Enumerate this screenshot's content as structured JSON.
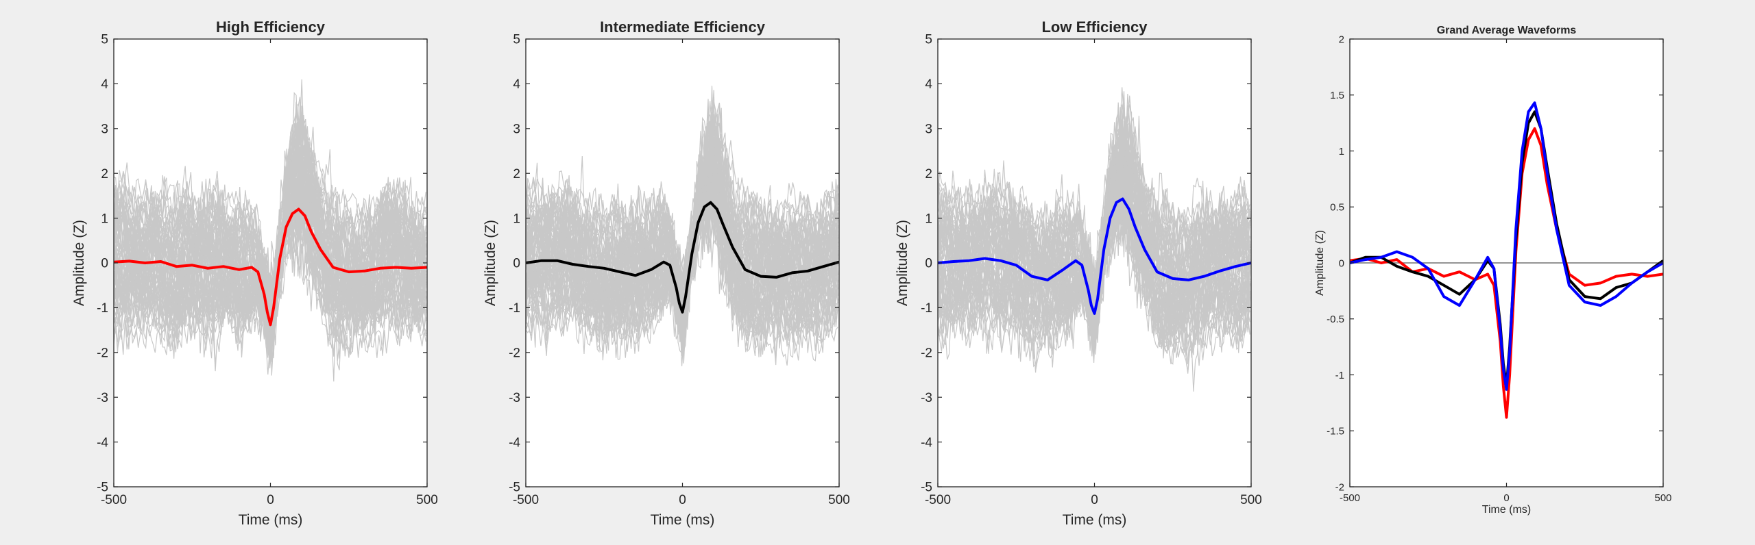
{
  "colors": {
    "background": "#efefef",
    "axes_bg": "#ffffff",
    "trials": "#c8c8c8",
    "high": "#ff0000",
    "intermediate": "#000000",
    "low": "#0000ff",
    "zero_line": "#707070"
  },
  "chart_data": [
    {
      "type": "line",
      "title": "High Efficiency",
      "xlabel": "Time (ms)",
      "ylabel": "Amplitude (Z)",
      "xlim": [
        -500,
        500
      ],
      "ylim": [
        -5,
        5
      ],
      "xticks": [
        -500,
        0,
        500
      ],
      "yticks": [
        -5,
        -4,
        -3,
        -2,
        -1,
        0,
        1,
        2,
        3,
        4,
        5
      ],
      "grid": false,
      "background_traces": "individual trials (gray)",
      "series": [
        {
          "color": "#ff0000",
          "x": [
            -500,
            -450,
            -400,
            -350,
            -300,
            -250,
            -200,
            -150,
            -100,
            -60,
            -40,
            -20,
            -10,
            0,
            10,
            30,
            50,
            70,
            90,
            110,
            130,
            160,
            200,
            250,
            300,
            350,
            400,
            450,
            500
          ],
          "y": [
            0.02,
            0.04,
            0.0,
            0.03,
            -0.08,
            -0.05,
            -0.12,
            -0.08,
            -0.15,
            -0.1,
            -0.2,
            -0.7,
            -1.1,
            -1.38,
            -1.0,
            0.1,
            0.8,
            1.1,
            1.2,
            1.05,
            0.7,
            0.3,
            -0.1,
            -0.2,
            -0.18,
            -0.12,
            -0.1,
            -0.12,
            -0.1
          ]
        }
      ]
    },
    {
      "type": "line",
      "title": "Intermediate Efficiency",
      "xlabel": "Time (ms)",
      "ylabel": "Amplitude (Z)",
      "xlim": [
        -500,
        500
      ],
      "ylim": [
        -5,
        5
      ],
      "xticks": [
        -500,
        0,
        500
      ],
      "yticks": [
        -5,
        -4,
        -3,
        -2,
        -1,
        0,
        1,
        2,
        3,
        4,
        5
      ],
      "grid": false,
      "background_traces": "individual trials (gray)",
      "series": [
        {
          "color": "#000000",
          "x": [
            -500,
            -450,
            -400,
            -350,
            -300,
            -250,
            -200,
            -150,
            -100,
            -60,
            -40,
            -20,
            -10,
            0,
            10,
            30,
            50,
            70,
            90,
            110,
            130,
            160,
            200,
            250,
            300,
            350,
            400,
            450,
            500
          ],
          "y": [
            0.0,
            0.05,
            0.05,
            -0.03,
            -0.08,
            -0.12,
            -0.2,
            -0.28,
            -0.15,
            0.02,
            -0.05,
            -0.55,
            -0.9,
            -1.1,
            -0.75,
            0.2,
            0.9,
            1.25,
            1.35,
            1.2,
            0.85,
            0.35,
            -0.15,
            -0.3,
            -0.32,
            -0.22,
            -0.18,
            -0.08,
            0.02
          ]
        }
      ]
    },
    {
      "type": "line",
      "title": "Low Efficiency",
      "xlabel": "Time (ms)",
      "ylabel": "Amplitude (Z)",
      "xlim": [
        -500,
        500
      ],
      "ylim": [
        -5,
        5
      ],
      "xticks": [
        -500,
        0,
        500
      ],
      "yticks": [
        -5,
        -4,
        -3,
        -2,
        -1,
        0,
        1,
        2,
        3,
        4,
        5
      ],
      "grid": false,
      "background_traces": "individual trials (gray)",
      "series": [
        {
          "color": "#0000ff",
          "x": [
            -500,
            -450,
            -400,
            -350,
            -300,
            -250,
            -200,
            -150,
            -100,
            -60,
            -40,
            -20,
            -10,
            0,
            10,
            30,
            50,
            70,
            90,
            110,
            130,
            160,
            200,
            250,
            300,
            350,
            400,
            450,
            500
          ],
          "y": [
            0.0,
            0.03,
            0.05,
            0.1,
            0.05,
            -0.05,
            -0.3,
            -0.38,
            -0.15,
            0.05,
            -0.05,
            -0.6,
            -0.95,
            -1.13,
            -0.8,
            0.3,
            1.0,
            1.35,
            1.43,
            1.2,
            0.8,
            0.3,
            -0.2,
            -0.35,
            -0.38,
            -0.3,
            -0.18,
            -0.08,
            0.0
          ]
        }
      ]
    },
    {
      "type": "line",
      "title": "Grand Average Waveforms",
      "xlabel": "Time (ms)",
      "ylabel": "Amplitude (Z)",
      "xlim": [
        -500,
        500
      ],
      "ylim": [
        -2,
        2
      ],
      "xticks": [
        -500,
        0,
        500
      ],
      "yticks": [
        -2,
        -1.5,
        -1,
        -0.5,
        0,
        0.5,
        1,
        1.5,
        2
      ],
      "grid": false,
      "reference_line_y": 0,
      "series": [
        {
          "color": "#ff0000",
          "x": [
            -500,
            -450,
            -400,
            -350,
            -300,
            -250,
            -200,
            -150,
            -100,
            -60,
            -40,
            -20,
            -10,
            0,
            10,
            30,
            50,
            70,
            90,
            110,
            130,
            160,
            200,
            250,
            300,
            350,
            400,
            450,
            500
          ],
          "y": [
            0.02,
            0.04,
            0.0,
            0.03,
            -0.08,
            -0.05,
            -0.12,
            -0.08,
            -0.15,
            -0.1,
            -0.2,
            -0.7,
            -1.1,
            -1.38,
            -1.0,
            0.1,
            0.8,
            1.1,
            1.2,
            1.05,
            0.7,
            0.3,
            -0.1,
            -0.2,
            -0.18,
            -0.12,
            -0.1,
            -0.12,
            -0.1
          ]
        },
        {
          "color": "#000000",
          "x": [
            -500,
            -450,
            -400,
            -350,
            -300,
            -250,
            -200,
            -150,
            -100,
            -60,
            -40,
            -20,
            -10,
            0,
            10,
            30,
            50,
            70,
            90,
            110,
            130,
            160,
            200,
            250,
            300,
            350,
            400,
            450,
            500
          ],
          "y": [
            0.0,
            0.05,
            0.05,
            -0.03,
            -0.08,
            -0.12,
            -0.2,
            -0.28,
            -0.15,
            0.02,
            -0.05,
            -0.55,
            -0.9,
            -1.1,
            -0.75,
            0.2,
            0.9,
            1.25,
            1.35,
            1.2,
            0.85,
            0.35,
            -0.15,
            -0.3,
            -0.32,
            -0.22,
            -0.18,
            -0.08,
            0.02
          ]
        },
        {
          "color": "#0000ff",
          "x": [
            -500,
            -450,
            -400,
            -350,
            -300,
            -250,
            -200,
            -150,
            -100,
            -60,
            -40,
            -20,
            -10,
            0,
            10,
            30,
            50,
            70,
            90,
            110,
            130,
            160,
            200,
            250,
            300,
            350,
            400,
            450,
            500
          ],
          "y": [
            0.0,
            0.03,
            0.05,
            0.1,
            0.05,
            -0.05,
            -0.3,
            -0.38,
            -0.15,
            0.05,
            -0.05,
            -0.6,
            -0.95,
            -1.13,
            -0.8,
            0.3,
            1.0,
            1.35,
            1.43,
            1.2,
            0.8,
            0.3,
            -0.2,
            -0.35,
            -0.38,
            -0.3,
            -0.18,
            -0.08,
            0.0
          ]
        }
      ]
    }
  ]
}
